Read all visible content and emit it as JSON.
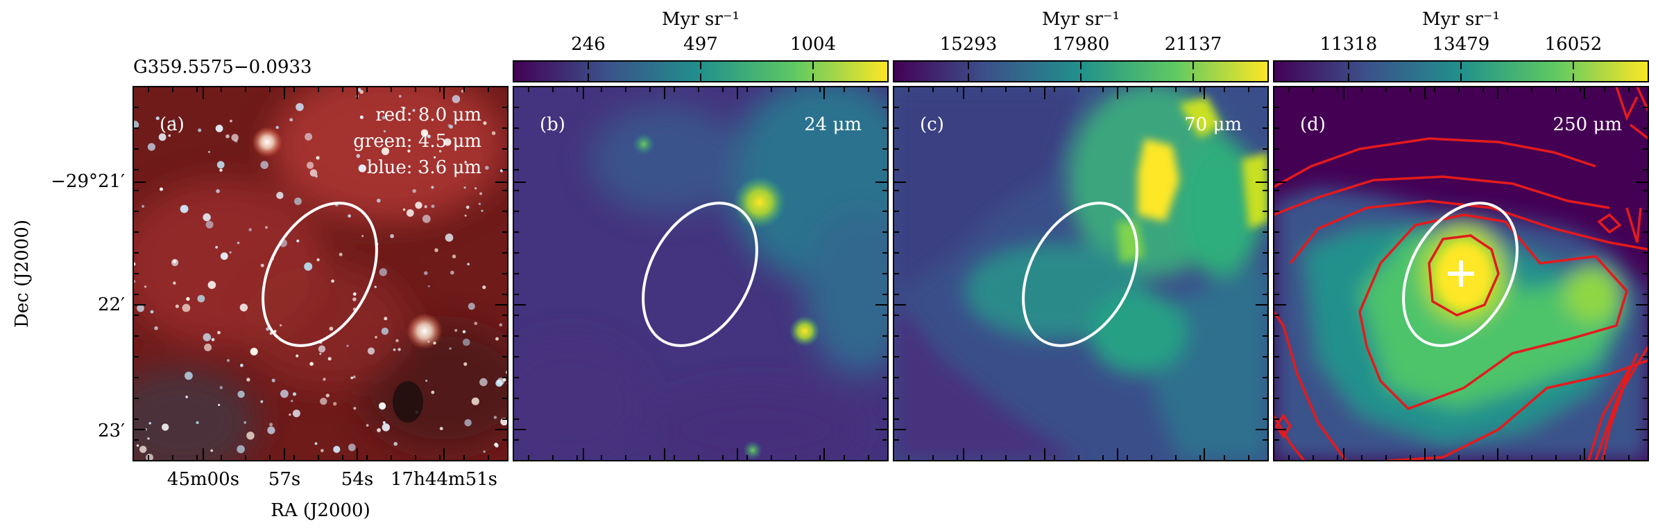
{
  "figure": {
    "source_title": "G359.5575−0.0933",
    "y_axis_label": "Dec (J2000)",
    "x_axis_label": "RA (J2000)",
    "y_ticks": [
      "−29°21′",
      "22′",
      "23′"
    ],
    "x_ticks": [
      "45m00s",
      "57s",
      "54s",
      "17h44m51s"
    ]
  },
  "panels": [
    {
      "letter": "(a)",
      "channels": [
        {
          "label": "red: 8.0 μm"
        },
        {
          "label": "green: 4.5 μm"
        },
        {
          "label": "blue: 3.6 μm"
        }
      ]
    },
    {
      "letter": "(b)",
      "wavelength": "24 μm",
      "colorbar": {
        "unit": "Myr sr⁻¹",
        "ticks": [
          "246",
          "497",
          "1004"
        ]
      }
    },
    {
      "letter": "(c)",
      "wavelength": "70 μm",
      "colorbar": {
        "unit": "Myr sr⁻¹",
        "ticks": [
          "15293",
          "17980",
          "21137"
        ]
      }
    },
    {
      "letter": "(d)",
      "wavelength": "250 μm",
      "colorbar": {
        "unit": "Myr sr⁻¹",
        "ticks": [
          "11318",
          "13479",
          "16052"
        ]
      }
    }
  ],
  "colors": {
    "ellipse": "#ffffff",
    "contours": "#e41a1c",
    "marker": "#ffffff",
    "colormap": [
      "#440154",
      "#3b528b",
      "#21918c",
      "#5ec962",
      "#fde725"
    ]
  },
  "chart_data": {
    "type": "heatmap",
    "panels": [
      "(a)",
      "(b)",
      "(c)",
      "(d)"
    ],
    "colorbar_unit": "Myr sr⁻¹",
    "colorbar_ticks": {
      "(b)": [
        246,
        497,
        1004
      ],
      "(c)": [
        15293,
        17980,
        21137
      ],
      "(d)": [
        11318,
        13479,
        16052
      ]
    },
    "wavelengths": {
      "(a)": "red: 8.0 μm; green: 4.5 μm; blue: 3.6 μm",
      "(b)": "24 μm",
      "(c)": "70 μm",
      "(d)": "250 μm"
    }
  }
}
